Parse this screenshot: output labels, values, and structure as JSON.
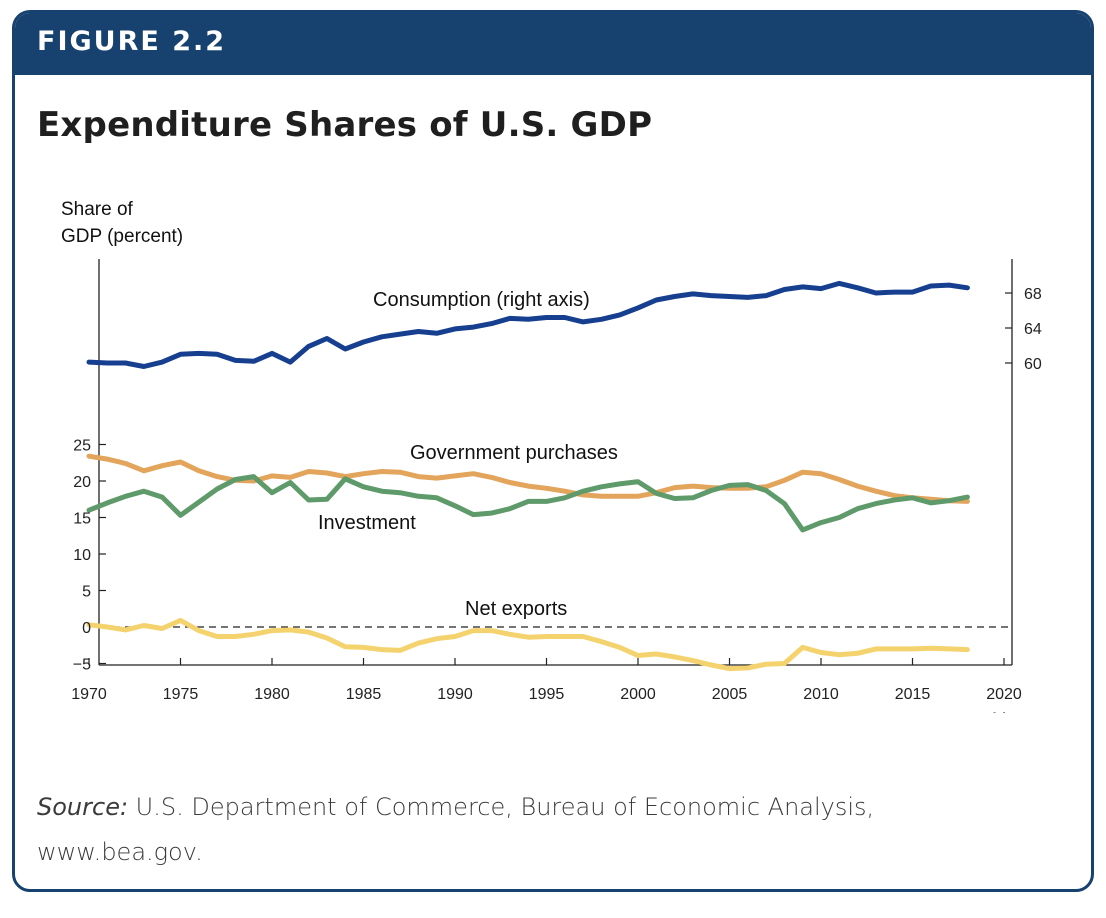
{
  "figure": {
    "label": "FIGURE 2.2",
    "title": "Expenditure Shares of U.S. GDP",
    "source_label": "Source:",
    "source_text": " U.S. Department of Commerce, Bureau of Economic Analysis, www.bea.gov."
  },
  "colors": {
    "banner": "#17426f",
    "consumption": "#173f8f",
    "government": "#e3a45c",
    "investment": "#5e9a6a",
    "net_exports": "#f4d36f"
  },
  "chart_data": {
    "type": "line",
    "title": "Expenditure Shares of U.S. GDP",
    "ylabel_lines": [
      "Share of",
      "GDP (percent)"
    ],
    "xlabel": "Year",
    "x_ticks": [
      1970,
      1975,
      1980,
      1985,
      1990,
      1995,
      2000,
      2005,
      2010,
      2015,
      2020
    ],
    "y_left_ticks": [
      25,
      20,
      15,
      10,
      5,
      0,
      -5
    ],
    "y_left_tick_labels": [
      "25",
      "20",
      "15",
      "10",
      "5",
      "0",
      "−5"
    ],
    "y_right_ticks": [
      68,
      64,
      60
    ],
    "ylim_left": [
      -5.5,
      25
    ],
    "xlim": [
      1970,
      2020
    ],
    "zero_line": "dashed",
    "annotations": [
      "Consumption (right axis)",
      "Government purchases",
      "Investment",
      "Net exports"
    ],
    "x": [
      1970,
      1971,
      1972,
      1973,
      1974,
      1975,
      1976,
      1977,
      1978,
      1979,
      1980,
      1981,
      1982,
      1983,
      1984,
      1985,
      1986,
      1987,
      1988,
      1989,
      1990,
      1991,
      1992,
      1993,
      1994,
      1995,
      1996,
      1997,
      1998,
      1999,
      2000,
      2001,
      2002,
      2003,
      2004,
      2005,
      2006,
      2007,
      2008,
      2009,
      2010,
      2011,
      2012,
      2013,
      2014,
      2015,
      2016,
      2017,
      2018
    ],
    "series": [
      {
        "name": "Consumption (right axis)",
        "axis": "right",
        "values": [
          60.1,
          60.0,
          60.0,
          59.6,
          60.1,
          61.0,
          61.1,
          61.0,
          60.3,
          60.2,
          61.1,
          60.1,
          61.9,
          62.8,
          61.6,
          62.4,
          63.0,
          63.3,
          63.6,
          63.4,
          63.9,
          64.1,
          64.5,
          65.1,
          65.0,
          65.2,
          65.2,
          64.7,
          65.0,
          65.5,
          66.3,
          67.2,
          67.6,
          67.9,
          67.7,
          67.6,
          67.5,
          67.7,
          68.4,
          68.7,
          68.5,
          69.1,
          68.6,
          68.0,
          68.1,
          68.1,
          68.8,
          68.9,
          68.6
        ]
      },
      {
        "name": "Government purchases",
        "axis": "left",
        "values": [
          23.4,
          23.0,
          22.4,
          21.4,
          22.1,
          22.6,
          21.4,
          20.6,
          20.1,
          20.0,
          20.7,
          20.5,
          21.3,
          21.1,
          20.6,
          21.0,
          21.3,
          21.2,
          20.6,
          20.4,
          20.7,
          21.0,
          20.5,
          19.8,
          19.3,
          19.0,
          18.6,
          18.1,
          17.9,
          17.9,
          17.9,
          18.4,
          19.1,
          19.3,
          19.1,
          19.0,
          19.0,
          19.2,
          20.1,
          21.2,
          21.0,
          20.2,
          19.3,
          18.6,
          18.0,
          17.7,
          17.5,
          17.3,
          17.2
        ]
      },
      {
        "name": "Investment",
        "axis": "left",
        "values": [
          16.0,
          17.0,
          17.9,
          18.6,
          17.8,
          15.3,
          17.1,
          18.9,
          20.2,
          20.6,
          18.4,
          19.8,
          17.4,
          17.5,
          20.3,
          19.2,
          18.6,
          18.4,
          17.9,
          17.7,
          16.6,
          15.4,
          15.6,
          16.2,
          17.2,
          17.2,
          17.7,
          18.6,
          19.2,
          19.6,
          19.9,
          18.3,
          17.6,
          17.7,
          18.7,
          19.4,
          19.5,
          18.7,
          16.9,
          13.3,
          14.3,
          15.0,
          16.2,
          16.9,
          17.4,
          17.7,
          17.0,
          17.3,
          17.8
        ]
      },
      {
        "name": "Net exports",
        "axis": "left",
        "values": [
          0.3,
          0.0,
          -0.4,
          0.2,
          -0.2,
          0.9,
          -0.5,
          -1.3,
          -1.3,
          -1.0,
          -0.5,
          -0.4,
          -0.7,
          -1.5,
          -2.7,
          -2.8,
          -3.1,
          -3.2,
          -2.2,
          -1.6,
          -1.3,
          -0.5,
          -0.5,
          -1.0,
          -1.4,
          -1.3,
          -1.3,
          -1.3,
          -2.0,
          -2.8,
          -3.9,
          -3.7,
          -4.1,
          -4.6,
          -5.2,
          -5.7,
          -5.6,
          -5.1,
          -5.0,
          -2.8,
          -3.5,
          -3.8,
          -3.6,
          -3.0,
          -3.0,
          -3.0,
          -2.9,
          -3.0,
          -3.1
        ]
      }
    ]
  }
}
